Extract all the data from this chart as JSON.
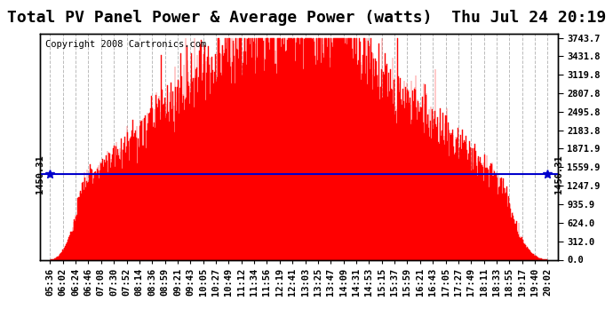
{
  "title": "Total PV Panel Power & Average Power (watts)  Thu Jul 24 20:19",
  "copyright": "Copyright 2008 Cartronics.com",
  "average_power": 1450.31,
  "y_max": 3743.7,
  "y_ticks": [
    0.0,
    312.0,
    624.0,
    935.9,
    1247.9,
    1559.9,
    1871.9,
    2183.8,
    2495.8,
    2807.8,
    3119.8,
    3431.8,
    3743.7
  ],
  "x_labels": [
    "05:36",
    "06:02",
    "06:24",
    "06:46",
    "07:08",
    "07:30",
    "07:52",
    "08:14",
    "08:36",
    "08:59",
    "09:21",
    "09:43",
    "10:05",
    "10:27",
    "10:49",
    "11:12",
    "11:34",
    "11:56",
    "12:19",
    "12:41",
    "13:03",
    "13:25",
    "13:47",
    "14:09",
    "14:31",
    "14:53",
    "15:15",
    "15:37",
    "15:59",
    "16:21",
    "16:43",
    "17:05",
    "17:27",
    "17:49",
    "18:11",
    "18:33",
    "18:55",
    "19:17",
    "19:40",
    "20:02"
  ],
  "bar_color": "#FF0000",
  "avg_line_color": "#0000CC",
  "background_color": "#FFFFFF",
  "grid_color": "#AAAAAA",
  "title_fontsize": 13,
  "copyright_fontsize": 7.5,
  "tick_fontsize": 7.5,
  "avg_label_fontsize": 7.5
}
